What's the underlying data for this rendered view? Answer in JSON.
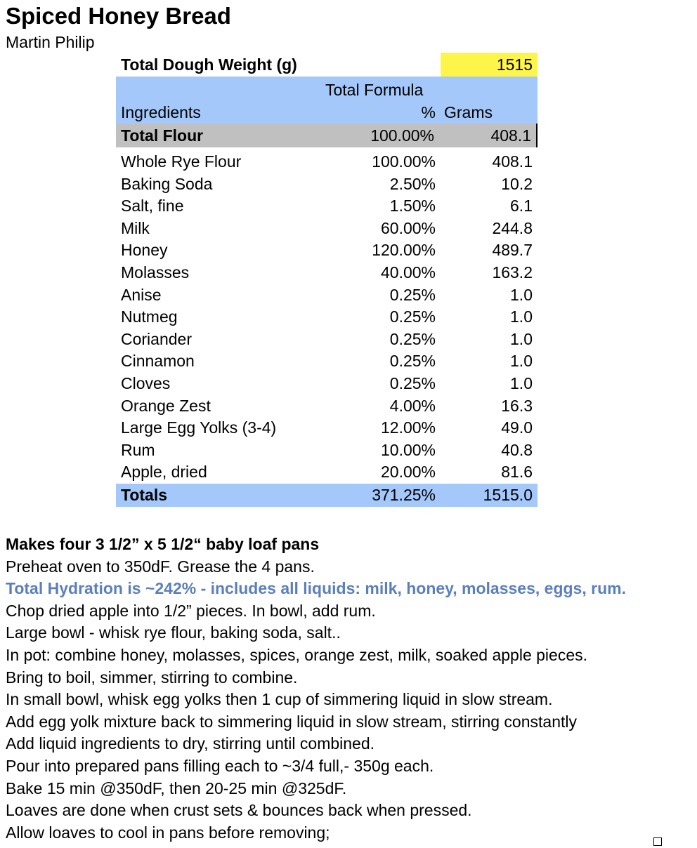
{
  "title": "Spiced Honey Bread",
  "author": "Martin Philip",
  "table": {
    "dough_weight_label": "Total Dough Weight (g)",
    "dough_weight_value": "1515",
    "header_line1": "Total Formula",
    "header_ingredients": "Ingredients",
    "header_pct": "%",
    "header_grams": "Grams",
    "total_flour": {
      "name": "Total Flour",
      "pct": "100.00%",
      "grams": "408.1"
    },
    "rows": [
      {
        "name": "Whole Rye Flour",
        "pct": "100.00%",
        "grams": "408.1"
      },
      {
        "name": "Baking Soda",
        "pct": "2.50%",
        "grams": "10.2"
      },
      {
        "name": "Salt, fine",
        "pct": "1.50%",
        "grams": "6.1"
      },
      {
        "name": "Milk",
        "pct": "60.00%",
        "grams": "244.8"
      },
      {
        "name": "Honey",
        "pct": "120.00%",
        "grams": "489.7"
      },
      {
        "name": "Molasses",
        "pct": "40.00%",
        "grams": "163.2"
      },
      {
        "name": "Anise",
        "pct": "0.25%",
        "grams": "1.0"
      },
      {
        "name": "Nutmeg",
        "pct": "0.25%",
        "grams": "1.0"
      },
      {
        "name": "Coriander",
        "pct": "0.25%",
        "grams": "1.0"
      },
      {
        "name": "Cinnamon",
        "pct": "0.25%",
        "grams": "1.0"
      },
      {
        "name": "Cloves",
        "pct": "0.25%",
        "grams": "1.0"
      },
      {
        "name": "Orange Zest",
        "pct": "4.00%",
        "grams": "16.3"
      },
      {
        "name": "Large Egg Yolks (3-4)",
        "pct": "12.00%",
        "grams": "49.0"
      },
      {
        "name": "Rum",
        "pct": "10.00%",
        "grams": "40.8"
      },
      {
        "name": "Apple, dried",
        "pct": "20.00%",
        "grams": "81.6"
      }
    ],
    "totals": {
      "name": "Totals",
      "pct": "371.25%",
      "grams": "1515.0"
    }
  },
  "notes": [
    {
      "text": "Makes four 3 1/2” x 5 1/2“ baby loaf pans",
      "style": "b"
    },
    {
      "text": "Preheat oven to 350dF.  Grease the 4 pans.",
      "style": ""
    },
    {
      "text": "Total Hydration is ~242% - includes all liquids: milk, honey, molasses, eggs, rum.",
      "style": "hl"
    },
    {
      "text": "Chop dried apple into 1/2” pieces.  In bowl, add rum.",
      "style": ""
    },
    {
      "text": "Large bowl - whisk rye flour, baking soda, salt..",
      "style": ""
    },
    {
      "text": "In pot: combine honey, molasses, spices, orange zest, milk, soaked apple pieces.",
      "style": ""
    },
    {
      "text": "Bring to boil, simmer, stirring to combine.",
      "style": ""
    },
    {
      "text": "In small bowl, whisk egg yolks then 1 cup of simmering liquid in slow stream.",
      "style": ""
    },
    {
      "text": "Add egg yolk mixture back to simmering liquid in slow stream, stirring constantly",
      "style": ""
    },
    {
      "text": "Add liquid ingredients to dry, stirring until combined.",
      "style": ""
    },
    {
      "text": "Pour into prepared pans filling each to ~3/4 full,- 350g each.",
      "style": ""
    },
    {
      "text": "Bake 15 min @350dF, then 20-25 min @325dF.",
      "style": ""
    },
    {
      "text": "Loaves are done when crust sets & bounces back when pressed.",
      "style": ""
    },
    {
      "text": "Allow loaves to cool in pans before removing;",
      "style": ""
    }
  ],
  "colors": {
    "highlight_yellow": "#fef54a",
    "header_blue": "#a4c8fa",
    "total_gray": "#c0c0c0",
    "hydration_text": "#5b7fbe"
  }
}
